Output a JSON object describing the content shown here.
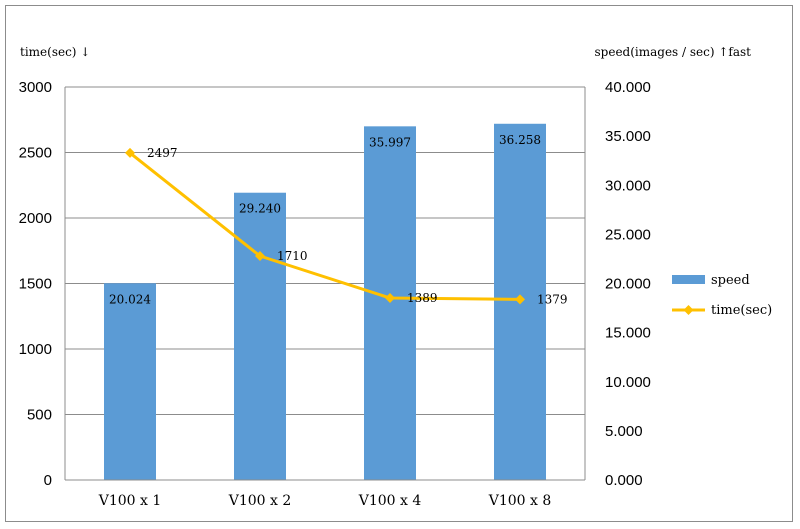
{
  "chart_data": {
    "type": "bar",
    "categories": [
      "V100 x 1",
      "V100 x 2",
      "V100 x 4",
      "V100 x 8"
    ],
    "y_left_title": "time(sec) ↓",
    "y_right_title": "speed(images / sec) ↑fast",
    "y_left_range": [
      0,
      3000
    ],
    "y_left_ticks": [
      "0",
      "500",
      "1000",
      "1500",
      "2000",
      "2500",
      "3000"
    ],
    "y_right_range": [
      0,
      40
    ],
    "y_right_ticks": [
      "0.000",
      "5.000",
      "10.000",
      "15.000",
      "20.000",
      "25.000",
      "30.000",
      "35.000",
      "40.000"
    ],
    "grid": true,
    "legend_position": "right",
    "series": [
      {
        "name": "speed",
        "kind": "bar",
        "axis": "right",
        "values": [
          20.024,
          29.24,
          35.997,
          36.258
        ],
        "labels": [
          "20.024",
          "29.240",
          "35.997",
          "36.258"
        ],
        "color": "#5b9bd5"
      },
      {
        "name": "time(sec)",
        "kind": "line",
        "axis": "left",
        "values": [
          2497,
          1710,
          1389,
          1379
        ],
        "labels": [
          "2497",
          "1710",
          "1389",
          "1379"
        ],
        "color": "#ffc000"
      }
    ]
  }
}
